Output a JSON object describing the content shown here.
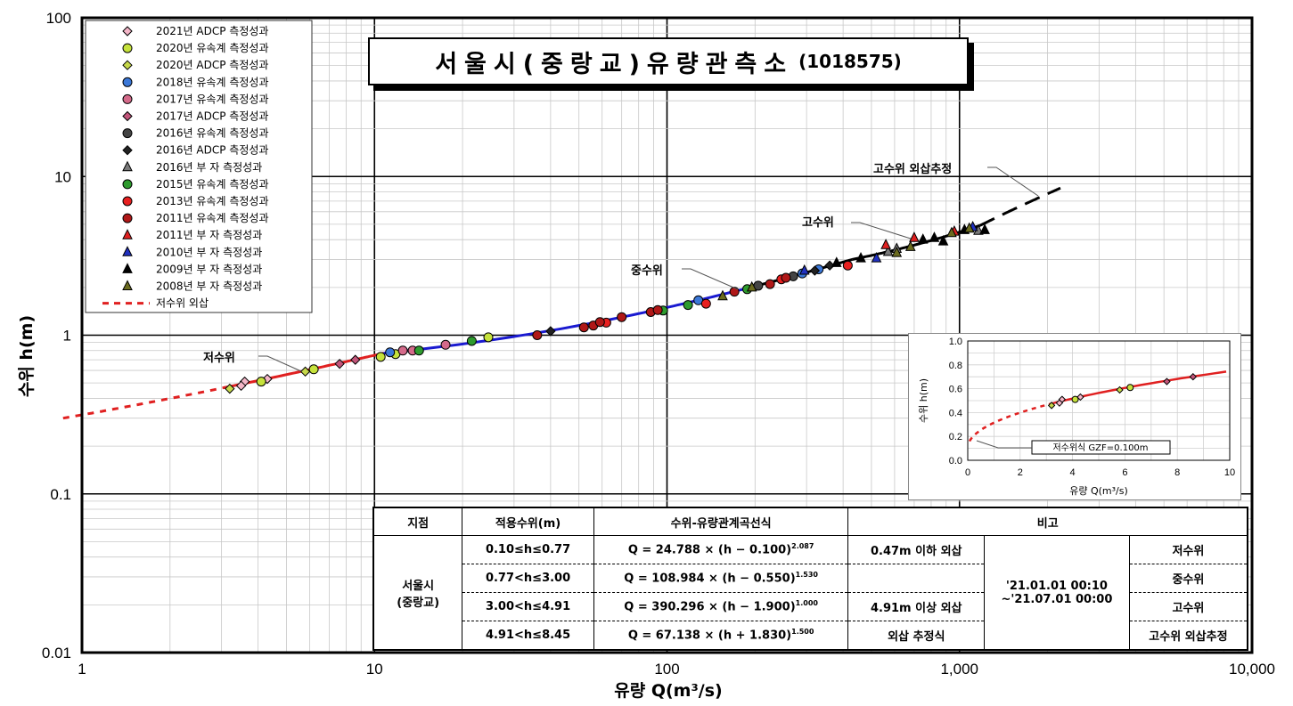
{
  "title": {
    "main": "서울시(중랑교)유량관측소",
    "code": "(1018575)"
  },
  "chart_data": {
    "type": "scatter",
    "xscale": "log",
    "yscale": "log",
    "xlim": [
      1,
      10000
    ],
    "ylim": [
      0.01,
      100
    ],
    "xlabel": "유량 Q(m³/s)",
    "ylabel": "수위 h(m)",
    "xticks": [
      "1",
      "10",
      "100",
      "1,000",
      "10,000"
    ],
    "yticks": [
      "0.01",
      "0.1",
      "1",
      "10",
      "100"
    ],
    "grid": true,
    "legend_position": "top-left",
    "series": [
      {
        "name": "2021년 ADCP 측정성과",
        "marker": "diamond",
        "color": "#f4b6c8",
        "points": [
          [
            3.6,
            0.51
          ],
          [
            4.3,
            0.53
          ],
          [
            3.5,
            0.48
          ]
        ]
      },
      {
        "name": "2020년 유속계 측정성과",
        "marker": "circle",
        "color": "#c6e23c",
        "points": [
          [
            4.1,
            0.51
          ],
          [
            6.2,
            0.61
          ],
          [
            10.5,
            0.73
          ],
          [
            11.8,
            0.76
          ],
          [
            24.5,
            0.97
          ]
        ]
      },
      {
        "name": "2020년 ADCP 측정성과",
        "marker": "diamond",
        "color": "#c6d84a",
        "points": [
          [
            3.2,
            0.46
          ],
          [
            5.8,
            0.59
          ]
        ]
      },
      {
        "name": "2018년 유속계 측정성과",
        "marker": "circle",
        "color": "#3b78d8",
        "points": [
          [
            11.3,
            0.78
          ],
          [
            128,
            1.66
          ],
          [
            290,
            2.45
          ],
          [
            330,
            2.6
          ]
        ]
      },
      {
        "name": "2017년 유속계 측정성과",
        "marker": "circle",
        "color": "#d46a8a",
        "points": [
          [
            12.5,
            0.8
          ],
          [
            13.5,
            0.8
          ],
          [
            17.5,
            0.87
          ]
        ]
      },
      {
        "name": "2017년 ADCP 측정성과",
        "marker": "diamond",
        "color": "#c2557a",
        "points": [
          [
            7.6,
            0.66
          ],
          [
            8.6,
            0.7
          ]
        ]
      },
      {
        "name": "2016년 유속계 측정성과",
        "marker": "circle",
        "color": "#444444",
        "points": [
          [
            205,
            2.05
          ],
          [
            270,
            2.35
          ]
        ]
      },
      {
        "name": "2016년 ADCP 측정성과",
        "marker": "diamond",
        "color": "#222222",
        "points": [
          [
            40,
            1.06
          ],
          [
            320,
            2.55
          ],
          [
            360,
            2.75
          ]
        ]
      },
      {
        "name": "2016년 부 자 측정성과",
        "marker": "triangle",
        "color": "#7a7a7a",
        "points": [
          [
            570,
            3.35
          ],
          [
            610,
            3.5
          ],
          [
            1160,
            4.55
          ]
        ]
      },
      {
        "name": "2015년 유속계 측정성과",
        "marker": "circle",
        "color": "#2e9b2e",
        "points": [
          [
            21.5,
            0.92
          ],
          [
            14.2,
            0.8
          ],
          [
            97,
            1.43
          ],
          [
            118,
            1.55
          ],
          [
            188,
            1.95
          ]
        ]
      },
      {
        "name": "2013년 유속계 측정성과",
        "marker": "circle",
        "color": "#e82020",
        "points": [
          [
            62,
            1.2
          ],
          [
            136,
            1.58
          ],
          [
            246,
            2.25
          ],
          [
            415,
            2.75
          ]
        ]
      },
      {
        "name": "2011년 유속계 측정성과",
        "marker": "circle",
        "color": "#b01818",
        "points": [
          [
            36,
            1.0
          ],
          [
            52,
            1.12
          ],
          [
            56,
            1.15
          ],
          [
            59,
            1.21
          ],
          [
            70,
            1.3
          ],
          [
            88,
            1.4
          ],
          [
            93,
            1.44
          ],
          [
            170,
            1.88
          ],
          [
            225,
            2.1
          ],
          [
            255,
            2.3
          ]
        ]
      },
      {
        "name": "2011년 부 자 측정성과",
        "marker": "triangle",
        "color": "#e02020",
        "points": [
          [
            560,
            3.7
          ],
          [
            700,
            4.1
          ],
          [
            960,
            4.5
          ]
        ]
      },
      {
        "name": "2010년 부 자 측정성과",
        "marker": "triangle",
        "color": "#2030c0",
        "points": [
          [
            295,
            2.55
          ],
          [
            520,
            3.05
          ],
          [
            1110,
            4.8
          ]
        ]
      },
      {
        "name": "2009년 부 자 측정성과",
        "marker": "triangle",
        "color": "#000000",
        "points": [
          [
            380,
            2.85
          ],
          [
            460,
            3.05
          ],
          [
            750,
            4.0
          ],
          [
            820,
            4.1
          ],
          [
            880,
            3.9
          ],
          [
            1040,
            4.6
          ],
          [
            1220,
            4.6
          ]
        ]
      },
      {
        "name": "2008년 부 자 측정성과",
        "marker": "triangle",
        "color": "#6b6b1e",
        "points": [
          [
            155,
            1.76
          ],
          [
            195,
            2.0
          ],
          [
            610,
            3.3
          ],
          [
            680,
            3.6
          ],
          [
            940,
            4.4
          ],
          [
            1080,
            4.7
          ]
        ]
      }
    ],
    "curves": [
      {
        "name": "저수위 외삽",
        "style": "dotted",
        "color": "#e02020",
        "a": 24.788,
        "h0": 0.1,
        "b": 2.087,
        "hmin": 0.3,
        "hmax": 0.47
      },
      {
        "segment": "0.10≤h≤0.77",
        "style": "solid",
        "color": "#e02020",
        "a": 24.788,
        "h0": 0.1,
        "b": 2.087,
        "hmin": 0.47,
        "hmax": 0.77
      },
      {
        "segment": "0.77<h≤3.00",
        "style": "solid",
        "color": "#1a1ad0",
        "a": 108.984,
        "h0": 0.55,
        "b": 1.53,
        "hmin": 0.77,
        "hmax": 2.0
      },
      {
        "segment": "0.77<h≤3.00",
        "style": "solid",
        "color": "#000000",
        "a": 108.984,
        "h0": 0.55,
        "b": 1.53,
        "hmin": 2.0,
        "hmax": 3.0
      },
      {
        "segment": "3.00<h≤4.91",
        "style": "solid",
        "color": "#000000",
        "a": 390.296,
        "h0": 1.9,
        "b": 1.0,
        "hmin": 3.0,
        "hmax": 4.91
      },
      {
        "segment": "4.91<h≤8.45",
        "style": "dashed",
        "color": "#000000",
        "a": 67.138,
        "h0": -1.83,
        "b": 1.5,
        "hmin": 4.91,
        "hmax": 8.45
      }
    ],
    "annotations": [
      "저수위",
      "중수위",
      "고수위",
      "고수위 외삽추정"
    ]
  },
  "inset": {
    "xlim": [
      0,
      10
    ],
    "ylim": [
      0,
      1.0
    ],
    "xticks": [
      "0",
      "2",
      "4",
      "6",
      "8",
      "10"
    ],
    "yticks": [
      "0.0",
      "0.2",
      "0.4",
      "0.6",
      "0.8",
      "1.0"
    ],
    "xlabel": "유량 Q(m³/s)",
    "ylabel": "수위 h(m)",
    "note": "저수위식 GZF=0.100m"
  },
  "table": {
    "headers": [
      "지점",
      "적용수위(m)",
      "수위-유량관계곡선식",
      "비고"
    ],
    "station": [
      "서울시",
      "(중랑교)"
    ],
    "rows": [
      {
        "range": "0.10≤h≤0.77",
        "eq": "Q =   24.788 × (h − 0.100)",
        "exp": "2.087",
        "note": "0.47m 이하 외삽",
        "stage": "저수위"
      },
      {
        "range": "0.77<h≤3.00",
        "eq": "Q = 108.984 × (h − 0.550)",
        "exp": "1.530",
        "note": "",
        "stage": "중수위"
      },
      {
        "range": "3.00<h≤4.91",
        "eq": "Q = 390.296 × (h − 1.900)",
        "exp": "1.000",
        "note": "4.91m 이상 외삽",
        "stage": "고수위"
      },
      {
        "range": "4.91<h≤8.45",
        "eq": "Q =   67.138 × (h + 1.830)",
        "exp": "1.500",
        "note": "외삽 추정식",
        "stage": "고수위 외삽추정"
      }
    ],
    "period": [
      "'21.01.01 00:10",
      "~'21.07.01 00:00"
    ]
  }
}
